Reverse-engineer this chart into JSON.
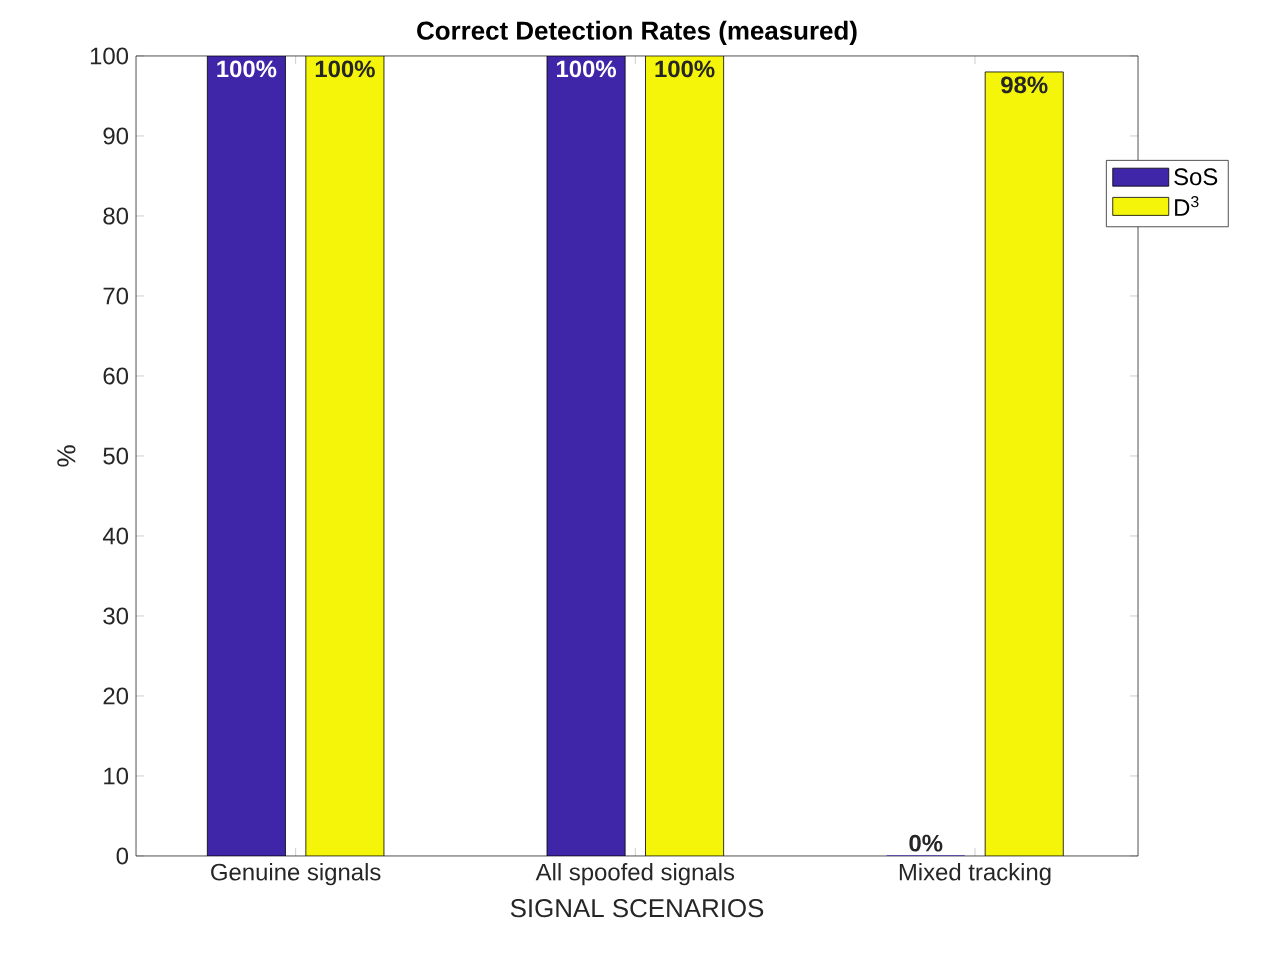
{
  "chart_data": {
    "type": "bar",
    "title": "Correct Detection Rates (measured)",
    "xlabel": "SIGNAL SCENARIOS",
    "ylabel": "%",
    "categories": [
      "Genuine signals",
      "All spoofed signals",
      "Mixed tracking"
    ],
    "series": [
      {
        "name": "SoS",
        "color": "#3f26a8",
        "values": [
          100,
          100,
          0
        ],
        "value_labels": [
          "100%",
          "100%",
          "0%"
        ]
      },
      {
        "name": "D$^{3}$",
        "color": "#f5f50a",
        "values": [
          100,
          100,
          98
        ],
        "value_labels": [
          "100%",
          "100%",
          "98%"
        ]
      }
    ],
    "ylim": [
      0,
      100
    ],
    "yticks": [
      0,
      10,
      20,
      30,
      40,
      50,
      60,
      70,
      80,
      90,
      100
    ],
    "legend": "right",
    "grid": false
  }
}
